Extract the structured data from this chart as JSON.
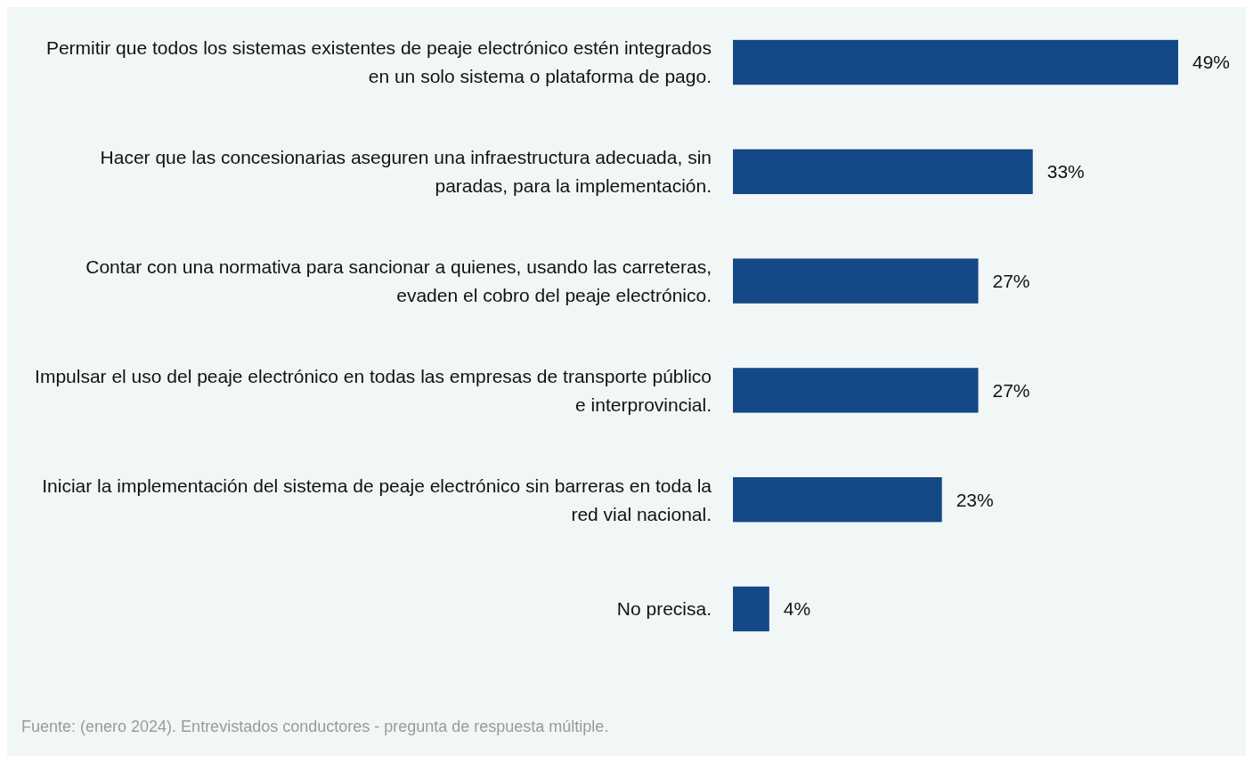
{
  "chart_data": {
    "type": "bar",
    "orientation": "horizontal",
    "categories": [
      "Permitir que todos los sistemas existentes de peaje electrónico estén integrados en un solo sistema o plataforma de pago.",
      "Hacer que las concesionarias aseguren una infraestructura adecuada, sin paradas, para la implementación.",
      "Contar con una normativa para sancionar a quienes, usando las carreteras, evaden el cobro del peaje electrónico.",
      "Impulsar el uso del peaje electrónico en todas las empresas de transporte público e interprovincial.",
      "Iniciar la implementación del sistema de peaje electrónico sin barreras en toda la red vial nacional.",
      "No precisa."
    ],
    "values": [
      49,
      33,
      27,
      27,
      23,
      4
    ],
    "value_labels": [
      "49%",
      "33%",
      "27%",
      "27%",
      "23%",
      "4%"
    ],
    "color": "#154886",
    "annotations": [
      "Fuente: (enero 2024). Entrevistados conductores - pregunta de respuesta múltiple."
    ]
  }
}
